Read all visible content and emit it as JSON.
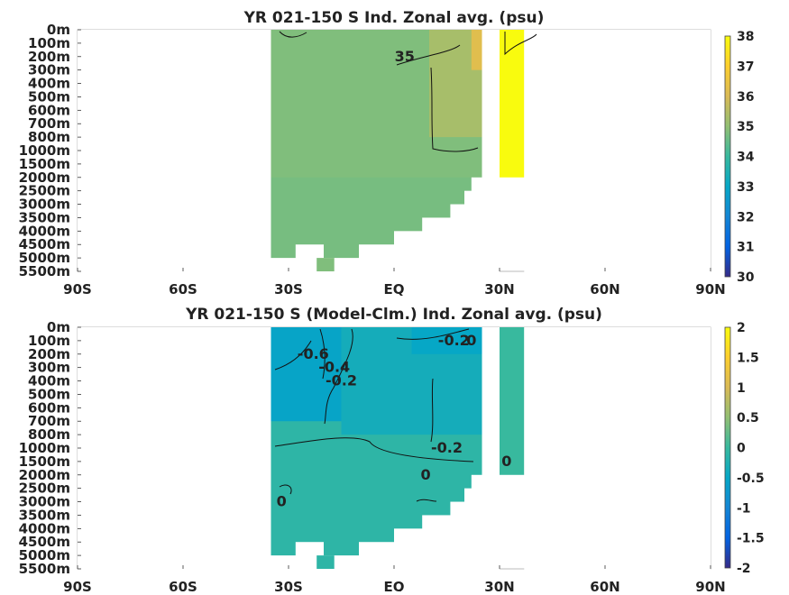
{
  "chart_data": [
    {
      "type": "heatmap",
      "title": "YR 021-150 S Ind. Zonal avg. (psu)",
      "x_ticks": [
        "90S",
        "60S",
        "30S",
        "EQ",
        "30N",
        "60N",
        "90N"
      ],
      "x_values": [
        -90,
        -60,
        -30,
        0,
        30,
        60,
        90
      ],
      "y_ticks": [
        "0m",
        "100m",
        "200m",
        "300m",
        "400m",
        "500m",
        "600m",
        "700m",
        "800m",
        "1000m",
        "1500m",
        "2000m",
        "2500m",
        "3000m",
        "3500m",
        "4000m",
        "4500m",
        "5000m",
        "5500m"
      ],
      "colorbar": {
        "min": 30,
        "max": 38,
        "ticks": [
          "30",
          "31",
          "32",
          "33",
          "34",
          "35",
          "36",
          "37",
          "38"
        ]
      },
      "contour_labels": [
        {
          "text": "35",
          "lat": 3,
          "depth": "200m"
        }
      ],
      "fields": {
        "main_basin": {
          "lat_range": [
            -35,
            25
          ],
          "value": 34.8
        },
        "tropical_north": {
          "lat_range": [
            10,
            25
          ],
          "depth_range": [
            "0m",
            "800m"
          ],
          "value": 35.3
        },
        "surface_high": {
          "lat_range": [
            22,
            25
          ],
          "depth_range": [
            "0m",
            "300m"
          ],
          "value": 36.2
        },
        "deep_water": {
          "depth_range": [
            "2000m",
            "5500m"
          ],
          "value": 34.7
        },
        "red_sea": {
          "lat_range": [
            30,
            37
          ],
          "depth_range": [
            "0m",
            "2000m"
          ],
          "value": 38
        }
      }
    },
    {
      "type": "heatmap",
      "title": "YR 021-150 S (Model-Clm.) Ind. Zonal avg. (psu)",
      "x_ticks": [
        "90S",
        "60S",
        "30S",
        "EQ",
        "30N",
        "60N",
        "90N"
      ],
      "x_values": [
        -90,
        -60,
        -30,
        0,
        30,
        60,
        90
      ],
      "y_ticks": [
        "0m",
        "100m",
        "200m",
        "300m",
        "400m",
        "500m",
        "600m",
        "700m",
        "800m",
        "1000m",
        "1500m",
        "2000m",
        "2500m",
        "3000m",
        "3500m",
        "4000m",
        "4500m",
        "5000m",
        "5500m"
      ],
      "colorbar": {
        "min": -2,
        "max": 2,
        "ticks": [
          "-2",
          "-1.5",
          "-1",
          "-0.5",
          "0",
          "0.5",
          "1",
          "1.5",
          "2"
        ]
      },
      "contour_labels": [
        {
          "text": "-0.6",
          "lat": -23,
          "depth": "200m"
        },
        {
          "text": "-0.4",
          "lat": -17,
          "depth": "300m"
        },
        {
          "text": "-0.2",
          "lat": -15,
          "depth": "400m"
        },
        {
          "text": "-0.2",
          "lat": 17,
          "depth": "100m"
        },
        {
          "text": "0",
          "lat": 22,
          "depth": "100m"
        },
        {
          "text": "-0.2",
          "lat": 15,
          "depth": "1000m"
        },
        {
          "text": "0",
          "lat": 9,
          "depth": "2000m"
        },
        {
          "text": "0",
          "lat": -32,
          "depth": "3000m"
        },
        {
          "text": "0",
          "lat": 32,
          "depth": "1500m"
        }
      ],
      "fields": {
        "southwest_fresh": {
          "lat_range": [
            -35,
            -15
          ],
          "depth_range": [
            "0m",
            "700m"
          ],
          "value": -0.55
        },
        "upper_basin": {
          "lat_range": [
            -15,
            25
          ],
          "depth_range": [
            "0m",
            "800m"
          ],
          "value": -0.35
        },
        "north_fresh": {
          "lat_range": [
            5,
            25
          ],
          "depth_range": [
            "0m",
            "200m"
          ],
          "value": -0.5
        },
        "deep_water": {
          "depth_range": [
            "1000m",
            "5500m"
          ],
          "value": -0.1
        },
        "red_sea": {
          "lat_range": [
            30,
            37
          ],
          "depth_range": [
            "0m",
            "2000m"
          ],
          "value": 0
        }
      }
    }
  ]
}
